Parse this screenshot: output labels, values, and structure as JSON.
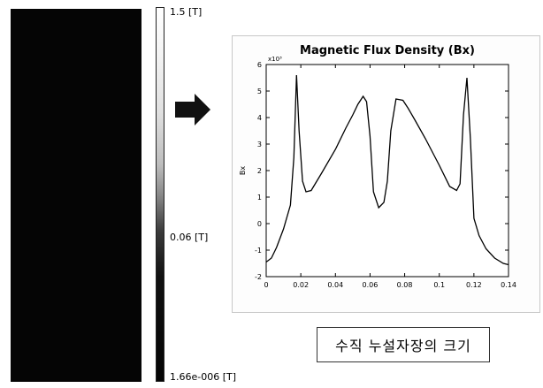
{
  "colorbar": {
    "max_label": "1.5 [T]",
    "mid_label": "0.06 [T]",
    "min_label": "1.66e-006 [T]",
    "arrow_icon": "right-arrow-icon"
  },
  "caption": "수직 누설자장의 크기",
  "chart_data": {
    "type": "line",
    "title": "Magnetic Flux Density (Bx)",
    "xlabel": "",
    "ylabel": "Bx",
    "y_exponent": "x10³",
    "xlim": [
      0,
      0.14
    ],
    "ylim": [
      -2,
      6
    ],
    "x_ticks": [
      "0",
      "0.02",
      "0.04",
      "0.06",
      "0.08",
      "0.1",
      "0.12",
      "0.14"
    ],
    "y_ticks": [
      "-2",
      "-1",
      "0",
      "1",
      "2",
      "3",
      "4",
      "5",
      "6"
    ],
    "series": [
      {
        "x": [
          0,
          0.003,
          0.006,
          0.01,
          0.014,
          0.016,
          0.0175,
          0.019,
          0.021,
          0.023,
          0.026,
          0.032,
          0.04,
          0.046,
          0.05,
          0.053,
          0.056,
          0.058,
          0.06,
          0.062,
          0.065,
          0.068,
          0.07,
          0.072,
          0.075,
          0.079,
          0.082,
          0.086,
          0.092,
          0.1,
          0.106,
          0.11,
          0.112,
          0.114,
          0.116,
          0.118,
          0.12,
          0.123,
          0.127,
          0.132,
          0.137,
          0.14
        ],
        "values": [
          -1.45,
          -1.3,
          -0.9,
          -0.2,
          0.7,
          2.5,
          5.6,
          3.5,
          1.6,
          1.2,
          1.25,
          1.9,
          2.8,
          3.6,
          4.1,
          4.5,
          4.8,
          4.6,
          3.3,
          1.2,
          0.6,
          0.8,
          1.6,
          3.5,
          4.7,
          4.65,
          4.35,
          3.9,
          3.2,
          2.2,
          1.4,
          1.25,
          1.5,
          4.1,
          5.5,
          3.2,
          0.2,
          -0.45,
          -0.95,
          -1.3,
          -1.5,
          -1.55
        ]
      }
    ],
    "grid": false,
    "accent_color": "#000000"
  }
}
